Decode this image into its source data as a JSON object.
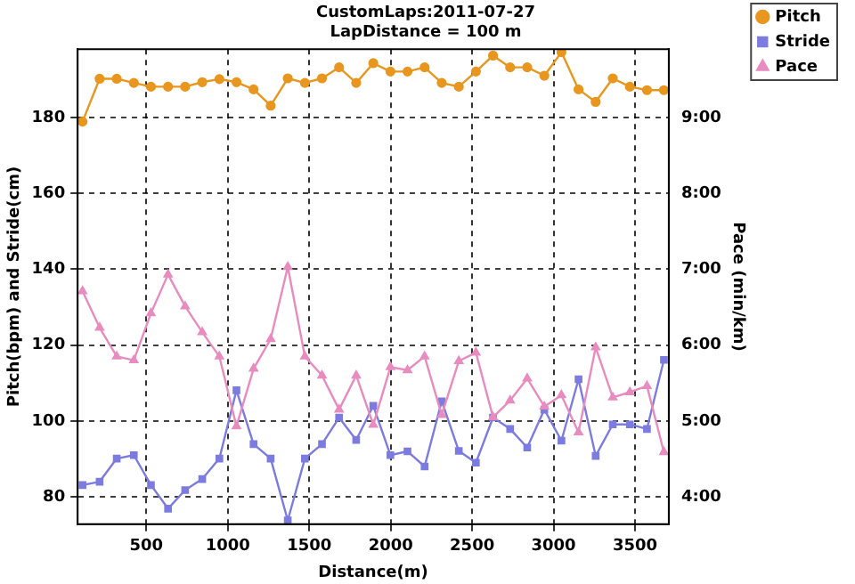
{
  "chart_data": {
    "type": "line",
    "title": "CustomLaps:2011-07-27",
    "subtitle": "LapDistance = 100 m",
    "xlabel": "Distance(m)",
    "ylabel": "Pitch(bpm) and Stride(cm)",
    "y2label": "Pace (min/km)",
    "x": [
      108,
      213,
      318,
      423,
      528,
      633,
      738,
      843,
      948,
      1053,
      1158,
      1263,
      1368,
      1473,
      1578,
      1683,
      1788,
      1893,
      1998,
      2103,
      2208,
      2313,
      2418,
      2523,
      2628,
      2733,
      2838,
      2943,
      3048,
      3153,
      3258,
      3363,
      3468,
      3573,
      3677
    ],
    "series": [
      {
        "name": "Pitch",
        "color": "#e8961e",
        "marker": "circle",
        "values": [
          178.9,
          190.2,
          190.2,
          189.1,
          188.1,
          188.1,
          188.1,
          189.3,
          190.1,
          189.3,
          187.4,
          183.1,
          190.3,
          189.1,
          190.3,
          193.2,
          189.1,
          194.3,
          192.1,
          192.1,
          193.2,
          189.1,
          188.1,
          192.1,
          196.3,
          193.2,
          193.2,
          191,
          197.2,
          187.4,
          184.1,
          190.3,
          188.1,
          187.2,
          187.2
        ]
      },
      {
        "name": "Stride",
        "color": "#7b7be0",
        "marker": "square",
        "values": [
          83.1,
          84.0,
          90.1,
          91.0,
          83.1,
          76.9,
          81.8,
          84.7,
          90.1,
          108.1,
          93.9,
          90.1,
          73.8,
          90.1,
          93.9,
          100.9,
          95.0,
          104.0,
          91.0,
          92.0,
          88.0,
          105.2,
          92.1,
          89.0,
          100.9,
          97.9,
          93.0,
          103.0,
          94.8,
          111.0,
          90.8,
          99.1,
          99.1,
          97.9,
          116.1
        ]
      },
      {
        "name": "Pace",
        "color": "#e88cc0",
        "marker": "triangle",
        "axis": "y2",
        "values": [
          6.71,
          6.23,
          5.85,
          5.8,
          6.42,
          6.93,
          6.51,
          6.17,
          5.85,
          4.93,
          5.69,
          6.08,
          7.03,
          5.85,
          5.6,
          5.15,
          5.6,
          4.95,
          5.71,
          5.67,
          5.85,
          5.08,
          5.79,
          5.9,
          5.05,
          5.27,
          5.56,
          5.19,
          5.34,
          4.85,
          5.97,
          5.31,
          5.38,
          5.46,
          4.59
        ]
      }
    ],
    "xlim": [
      78,
      3707
    ],
    "xticks": [
      500,
      1000,
      1500,
      2000,
      2500,
      3000,
      3500
    ],
    "ylim": [
      72.8,
      198
    ],
    "yticks": [
      80,
      100,
      120,
      140,
      160,
      180
    ],
    "y2lim": [
      3.64,
      9.9
    ],
    "y2ticks": [
      {
        "value": 4,
        "label": "4:00"
      },
      {
        "value": 5,
        "label": "5:00"
      },
      {
        "value": 6,
        "label": "6:00"
      },
      {
        "value": 7,
        "label": "7:00"
      },
      {
        "value": 8,
        "label": "8:00"
      },
      {
        "value": 9,
        "label": "9:00"
      }
    ],
    "grid": true,
    "line_style": "solid",
    "legend": "top right"
  }
}
